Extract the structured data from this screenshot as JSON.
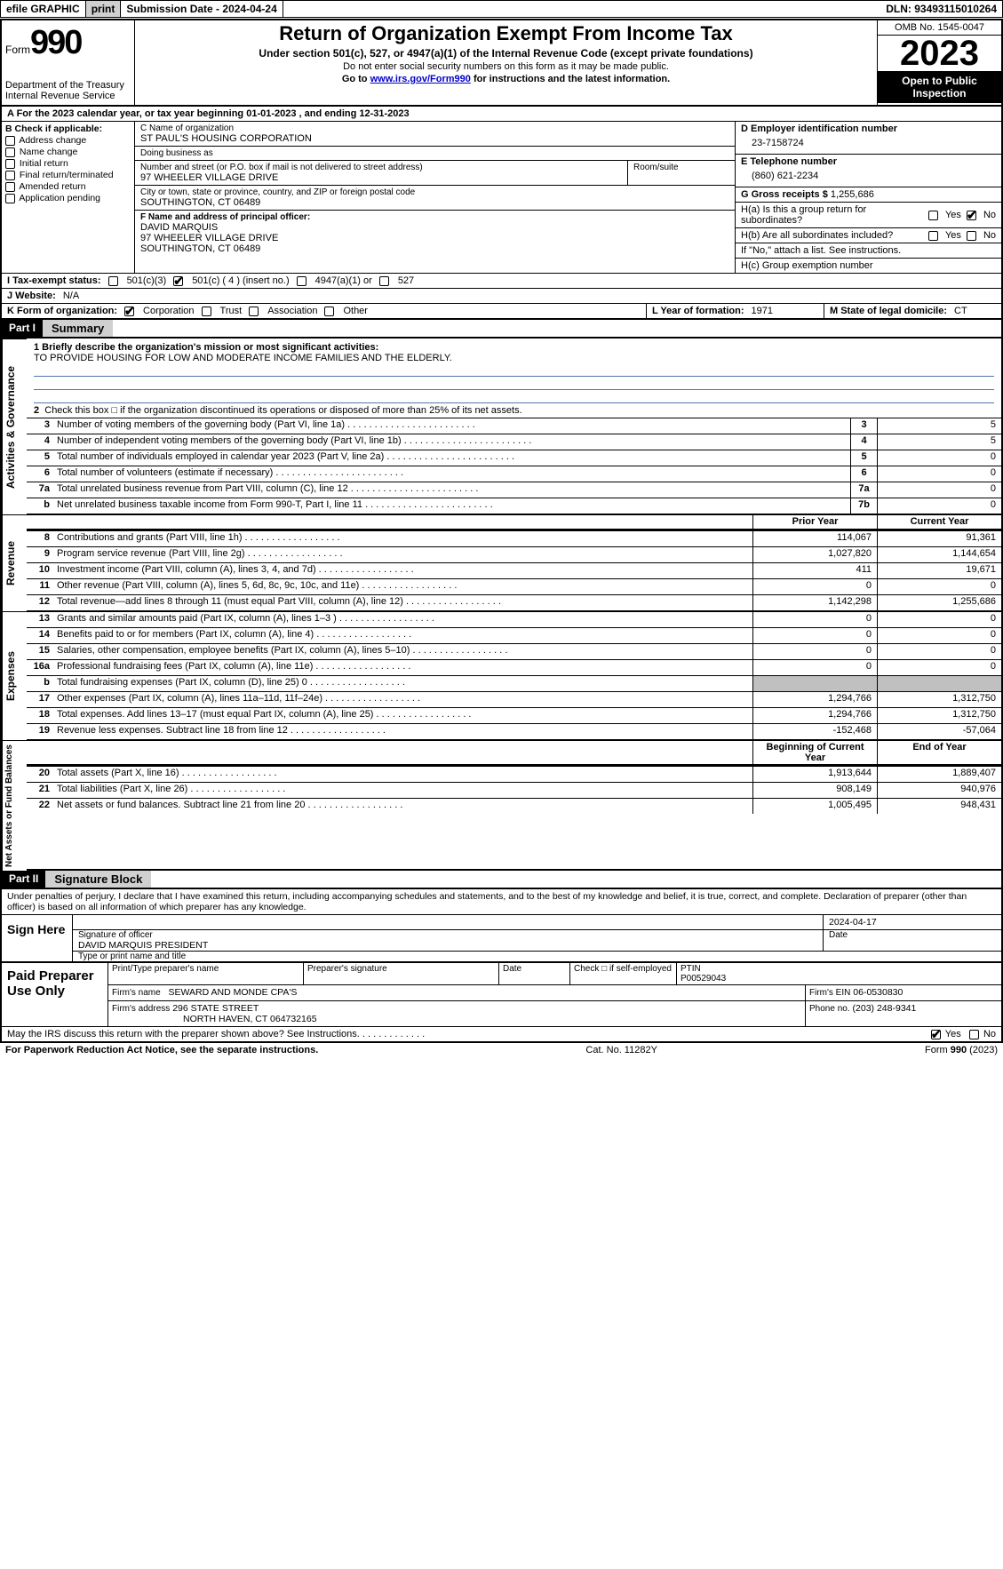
{
  "topbar": {
    "efile": "efile GRAPHIC",
    "print": "print",
    "submission_label": "Submission Date - ",
    "submission_date": "2024-04-24",
    "dln_label": "DLN: ",
    "dln": "93493115010264"
  },
  "header": {
    "form_word": "Form",
    "form_num": "990",
    "dept1": "Department of the Treasury",
    "dept2": "Internal Revenue Service",
    "title": "Return of Organization Exempt From Income Tax",
    "subtitle": "Under section 501(c), 527, or 4947(a)(1) of the Internal Revenue Code (except private foundations)",
    "note1": "Do not enter social security numbers on this form as it may be made public.",
    "note2a": "Go to ",
    "note2_link": "www.irs.gov/Form990",
    "note2b": " for instructions and the latest information.",
    "omb": "OMB No. 1545-0047",
    "year": "2023",
    "open_insp": "Open to Public Inspection"
  },
  "rowA": {
    "text_a": "A For the 2023 calendar year, or tax year beginning ",
    "begin": "01-01-2023",
    "mid": " , and ending ",
    "end": "12-31-2023"
  },
  "colB": {
    "label": "B Check if applicable:",
    "items": [
      "Address change",
      "Name change",
      "Initial return",
      "Final return/terminated",
      "Amended return",
      "Application pending"
    ]
  },
  "colC": {
    "name_lbl": "C Name of organization",
    "name": "ST PAUL'S HOUSING CORPORATION",
    "dba_lbl": "Doing business as",
    "dba": "",
    "addr_lbl": "Number and street (or P.O. box if mail is not delivered to street address)",
    "addr": "97 WHEELER VILLAGE DRIVE",
    "room_lbl": "Room/suite",
    "city_lbl": "City or town, state or province, country, and ZIP or foreign postal code",
    "city": "SOUTHINGTON, CT  06489",
    "officer_lbl": "F Name and address of principal officer:",
    "officer_name": "DAVID MARQUIS",
    "officer_addr1": "97 WHEELER VILLAGE DRIVE",
    "officer_addr2": "SOUTHINGTON, CT  06489"
  },
  "colD": {
    "ein_lbl": "D Employer identification number",
    "ein": "23-7158724",
    "tel_lbl": "E Telephone number",
    "tel": "(860) 621-2234",
    "gross_lbl": "G Gross receipts $ ",
    "gross": "1,255,686",
    "ha_lbl": "H(a) Is this a group return for subordinates?",
    "hb_lbl": "H(b) Are all subordinates included?",
    "hb_note": "If \"No,\" attach a list. See instructions.",
    "hc_lbl": "H(c) Group exemption number",
    "yes": "Yes",
    "no": "No"
  },
  "rowI": {
    "lbl": "I Tax-exempt status:",
    "c3": "501(c)(3)",
    "c_other": "501(c) ( 4 ) (insert no.)",
    "c4947": "4947(a)(1) or",
    "c527": "527"
  },
  "rowJ": {
    "lbl": "J Website:",
    "val": "N/A"
  },
  "rowK": {
    "lbl": "K Form of organization:",
    "corp": "Corporation",
    "trust": "Trust",
    "assoc": "Association",
    "other": "Other",
    "year_lbl": "L Year of formation: ",
    "year": "1971",
    "state_lbl": "M State of legal domicile: ",
    "state": "CT"
  },
  "part1": {
    "num": "Part I",
    "title": "Summary"
  },
  "mission": {
    "lbl": "1 Briefly describe the organization's mission or most significant activities:",
    "text": "TO PROVIDE HOUSING FOR LOW AND MODERATE INCOME FAMILIES AND THE ELDERLY."
  },
  "line2_text": "Check this box □ if the organization discontinued its operations or disposed of more than 25% of its net assets.",
  "gov_lines": [
    {
      "n": "3",
      "d": "Number of voting members of the governing body (Part VI, line 1a)",
      "b": "3",
      "v": "5"
    },
    {
      "n": "4",
      "d": "Number of independent voting members of the governing body (Part VI, line 1b)",
      "b": "4",
      "v": "5"
    },
    {
      "n": "5",
      "d": "Total number of individuals employed in calendar year 2023 (Part V, line 2a)",
      "b": "5",
      "v": "0"
    },
    {
      "n": "6",
      "d": "Total number of volunteers (estimate if necessary)",
      "b": "6",
      "v": "0"
    },
    {
      "n": "7a",
      "d": "Total unrelated business revenue from Part VIII, column (C), line 12",
      "b": "7a",
      "v": "0"
    },
    {
      "n": "b",
      "d": "Net unrelated business taxable income from Form 990-T, Part I, line 11",
      "b": "7b",
      "v": "0"
    }
  ],
  "rev_hdr": {
    "py": "Prior Year",
    "cy": "Current Year"
  },
  "rev_lines": [
    {
      "n": "8",
      "d": "Contributions and grants (Part VIII, line 1h)",
      "py": "114,067",
      "cy": "91,361"
    },
    {
      "n": "9",
      "d": "Program service revenue (Part VIII, line 2g)",
      "py": "1,027,820",
      "cy": "1,144,654"
    },
    {
      "n": "10",
      "d": "Investment income (Part VIII, column (A), lines 3, 4, and 7d)",
      "py": "411",
      "cy": "19,671"
    },
    {
      "n": "11",
      "d": "Other revenue (Part VIII, column (A), lines 5, 6d, 8c, 9c, 10c, and 11e)",
      "py": "0",
      "cy": "0"
    },
    {
      "n": "12",
      "d": "Total revenue—add lines 8 through 11 (must equal Part VIII, column (A), line 12)",
      "py": "1,142,298",
      "cy": "1,255,686"
    }
  ],
  "exp_lines": [
    {
      "n": "13",
      "d": "Grants and similar amounts paid (Part IX, column (A), lines 1–3 )",
      "py": "0",
      "cy": "0"
    },
    {
      "n": "14",
      "d": "Benefits paid to or for members (Part IX, column (A), line 4)",
      "py": "0",
      "cy": "0"
    },
    {
      "n": "15",
      "d": "Salaries, other compensation, employee benefits (Part IX, column (A), lines 5–10)",
      "py": "0",
      "cy": "0"
    },
    {
      "n": "16a",
      "d": "Professional fundraising fees (Part IX, column (A), line 11e)",
      "py": "0",
      "cy": "0"
    },
    {
      "n": "b",
      "d": "Total fundraising expenses (Part IX, column (D), line 25) 0",
      "py": "",
      "cy": "",
      "grey": true
    },
    {
      "n": "17",
      "d": "Other expenses (Part IX, column (A), lines 11a–11d, 11f–24e)",
      "py": "1,294,766",
      "cy": "1,312,750"
    },
    {
      "n": "18",
      "d": "Total expenses. Add lines 13–17 (must equal Part IX, column (A), line 25)",
      "py": "1,294,766",
      "cy": "1,312,750"
    },
    {
      "n": "19",
      "d": "Revenue less expenses. Subtract line 18 from line 12",
      "py": "-152,468",
      "cy": "-57,064"
    }
  ],
  "na_hdr": {
    "py": "Beginning of Current Year",
    "cy": "End of Year"
  },
  "na_lines": [
    {
      "n": "20",
      "d": "Total assets (Part X, line 16)",
      "py": "1,913,644",
      "cy": "1,889,407"
    },
    {
      "n": "21",
      "d": "Total liabilities (Part X, line 26)",
      "py": "908,149",
      "cy": "940,976"
    },
    {
      "n": "22",
      "d": "Net assets or fund balances. Subtract line 21 from line 20",
      "py": "1,005,495",
      "cy": "948,431"
    }
  ],
  "vlabels": {
    "gov": "Activities & Governance",
    "rev": "Revenue",
    "exp": "Expenses",
    "na": "Net Assets or Fund Balances"
  },
  "part2": {
    "num": "Part II",
    "title": "Signature Block"
  },
  "sig": {
    "decl": "Under penalties of perjury, I declare that I have examined this return, including accompanying schedules and statements, and to the best of my knowledge and belief, it is true, correct, and complete. Declaration of preparer (other than officer) is based on all information of which preparer has any knowledge.",
    "sign_here": "Sign Here",
    "sig_officer_lbl": "Signature of officer",
    "officer": "DAVID MARQUIS PRESIDENT",
    "date": "2024-04-17",
    "date_lbl": "Date",
    "type_lbl": "Type or print name and title"
  },
  "paid": {
    "title": "Paid Preparer Use Only",
    "h1": "Print/Type preparer's name",
    "h2": "Preparer's signature",
    "h3": "Date",
    "h4": "Check □ if self-employed",
    "h5_lbl": "PTIN",
    "h5": "P00529043",
    "firm_name_lbl": "Firm's name",
    "firm_name": "SEWARD AND MONDE CPA'S",
    "firm_ein_lbl": "Firm's EIN",
    "firm_ein": "06-0530830",
    "firm_addr_lbl": "Firm's address",
    "firm_addr1": "296 STATE STREET",
    "firm_addr2": "NORTH HAVEN, CT  064732165",
    "phone_lbl": "Phone no.",
    "phone": "(203) 248-9341"
  },
  "footer": {
    "discuss": "May the IRS discuss this return with the preparer shown above? See Instructions.",
    "yes": "Yes",
    "no": "No",
    "pra": "For Paperwork Reduction Act Notice, see the separate instructions.",
    "cat": "Cat. No. 11282Y",
    "form": "Form 990 (2023)"
  }
}
